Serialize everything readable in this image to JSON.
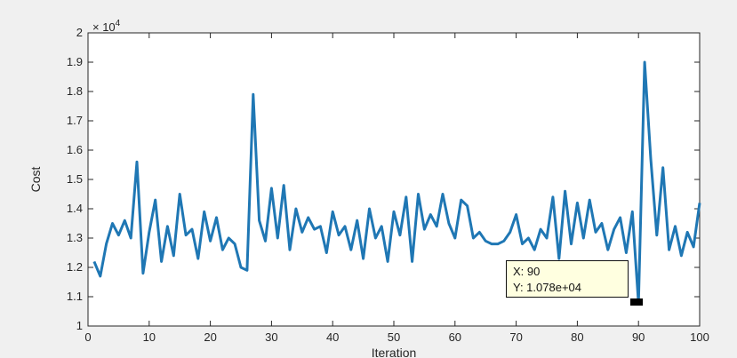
{
  "chart_data": {
    "type": "line",
    "xlabel": "Iteration",
    "ylabel": "Cost",
    "exponent_label": "× 10^4",
    "exponent_base": "× 10",
    "exponent_power": "4",
    "xlim": [
      0,
      100
    ],
    "ylim": [
      1.0,
      2.0
    ],
    "grid": false,
    "line_color": "#1f77b4",
    "x_ticks": [
      0,
      10,
      20,
      30,
      40,
      50,
      60,
      70,
      80,
      90,
      100
    ],
    "y_ticks": [
      1,
      1.1,
      1.2,
      1.3,
      1.4,
      1.5,
      1.6,
      1.7,
      1.8,
      1.9,
      2
    ],
    "series": [
      {
        "x": [
          1,
          2,
          3,
          4,
          5,
          6,
          7,
          8,
          9,
          10,
          11,
          12,
          13,
          14,
          15,
          16,
          17,
          18,
          19,
          20,
          21,
          22,
          23,
          24,
          25,
          26,
          27,
          28,
          29,
          30,
          31,
          32,
          33,
          34,
          35,
          36,
          37,
          38,
          39,
          40,
          41,
          42,
          43,
          44,
          45,
          46,
          47,
          48,
          49,
          50,
          51,
          52,
          53,
          54,
          55,
          56,
          57,
          58,
          59,
          60,
          61,
          62,
          63,
          64,
          65,
          66,
          67,
          68,
          69,
          70,
          71,
          72,
          73,
          74,
          75,
          76,
          77,
          78,
          79,
          80,
          81,
          82,
          83,
          84,
          85,
          86,
          87,
          88,
          89,
          90,
          91,
          92,
          93,
          94,
          95,
          96,
          97,
          98,
          99,
          100
        ],
        "values": [
          1.22,
          1.17,
          1.28,
          1.35,
          1.31,
          1.36,
          1.3,
          1.56,
          1.18,
          1.32,
          1.43,
          1.22,
          1.34,
          1.24,
          1.45,
          1.31,
          1.33,
          1.23,
          1.39,
          1.29,
          1.37,
          1.26,
          1.3,
          1.28,
          1.2,
          1.19,
          1.79,
          1.36,
          1.29,
          1.47,
          1.3,
          1.48,
          1.26,
          1.4,
          1.32,
          1.37,
          1.33,
          1.34,
          1.25,
          1.39,
          1.31,
          1.34,
          1.26,
          1.36,
          1.23,
          1.4,
          1.3,
          1.34,
          1.22,
          1.39,
          1.31,
          1.44,
          1.22,
          1.45,
          1.33,
          1.38,
          1.34,
          1.45,
          1.35,
          1.3,
          1.43,
          1.41,
          1.3,
          1.32,
          1.29,
          1.28,
          1.28,
          1.29,
          1.32,
          1.38,
          1.28,
          1.3,
          1.26,
          1.33,
          1.3,
          1.44,
          1.23,
          1.46,
          1.28,
          1.42,
          1.3,
          1.43,
          1.32,
          1.35,
          1.26,
          1.33,
          1.37,
          1.25,
          1.39,
          1.078,
          1.9,
          1.57,
          1.31,
          1.54,
          1.26,
          1.34,
          1.24,
          1.32,
          1.27,
          1.42
        ]
      }
    ]
  },
  "datatip": {
    "x_label": "X: 90",
    "y_label": "Y: 1.078e+04"
  }
}
